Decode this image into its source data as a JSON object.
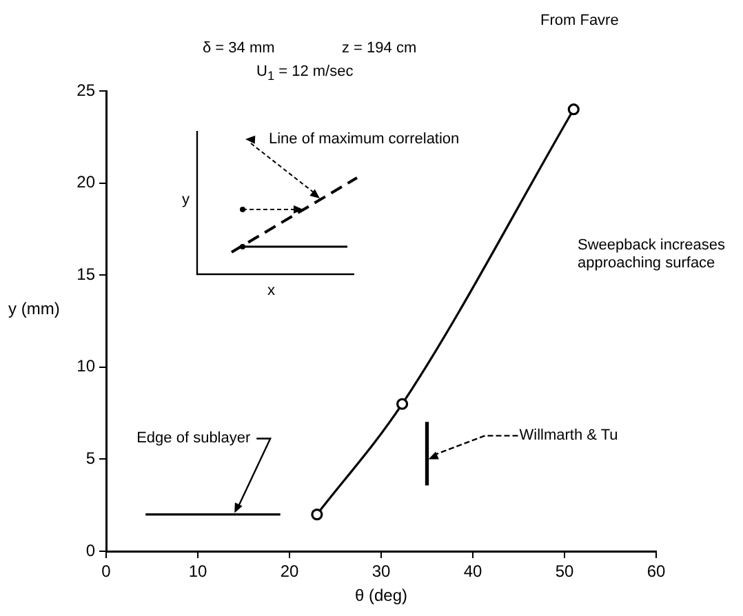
{
  "chart_data": {
    "type": "line",
    "xlabel": "θ (deg)",
    "ylabel": "y (mm)",
    "xlim": [
      0,
      60
    ],
    "xticks": [
      0,
      10,
      20,
      30,
      40,
      50,
      60
    ],
    "ylim": [
      0,
      25
    ],
    "yticks": [
      0,
      5,
      10,
      15,
      20,
      25
    ],
    "grid": false,
    "legend": false,
    "series": [
      {
        "type": "line",
        "color": "#000000",
        "x": [
          23,
          32.3,
          51
        ],
        "values": [
          2,
          8,
          24
        ],
        "marker": "circle"
      },
      {
        "type": "line",
        "color": "#000000",
        "x": [
          4.3,
          19
        ],
        "values": [
          2,
          2
        ],
        "marker": "none"
      },
      {
        "type": "bar",
        "color": "#000000",
        "x": [
          35
        ],
        "base": [
          3.6
        ],
        "values": [
          3.4
        ]
      }
    ],
    "annotations": [
      "From Favre",
      "δ = 34 mm",
      "z = 194 cm",
      "U$_{1}$ = 12 m/sec",
      "Sweepback increases approaching surface",
      "Line of maximum correlation",
      "y",
      "x",
      {
        "text": "Edge of sublayer",
        "x": 14,
        "y": 2
      },
      {
        "text": "Willmarth & Tu",
        "x": 35,
        "y": 5
      }
    ]
  }
}
